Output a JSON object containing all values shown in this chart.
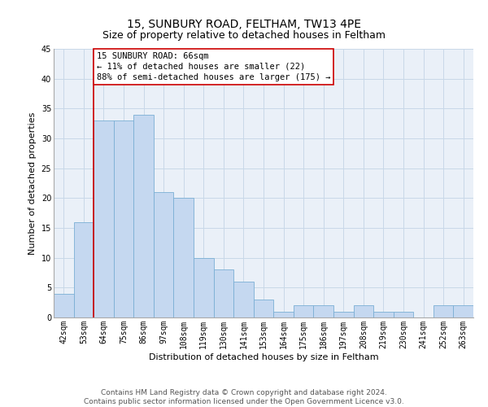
{
  "title": "15, SUNBURY ROAD, FELTHAM, TW13 4PE",
  "subtitle": "Size of property relative to detached houses in Feltham",
  "xlabel": "Distribution of detached houses by size in Feltham",
  "ylabel": "Number of detached properties",
  "categories": [
    "42sqm",
    "53sqm",
    "64sqm",
    "75sqm",
    "86sqm",
    "97sqm",
    "108sqm",
    "119sqm",
    "130sqm",
    "141sqm",
    "153sqm",
    "164sqm",
    "175sqm",
    "186sqm",
    "197sqm",
    "208sqm",
    "219sqm",
    "230sqm",
    "241sqm",
    "252sqm",
    "263sqm"
  ],
  "values": [
    4,
    16,
    33,
    33,
    34,
    21,
    20,
    10,
    8,
    6,
    3,
    1,
    2,
    2,
    1,
    2,
    1,
    1,
    0,
    2,
    2
  ],
  "bar_color": "#c5d8f0",
  "bar_edge_color": "#7aafd4",
  "property_line_color": "#cc0000",
  "annotation_line1": "15 SUNBURY ROAD: 66sqm",
  "annotation_line2": "← 11% of detached houses are smaller (22)",
  "annotation_line3": "88% of semi-detached houses are larger (175) →",
  "annotation_box_color": "#ffffff",
  "annotation_box_edge": "#cc0000",
  "ylim": [
    0,
    45
  ],
  "yticks": [
    0,
    5,
    10,
    15,
    20,
    25,
    30,
    35,
    40,
    45
  ],
  "grid_color": "#c8d8e8",
  "background_color": "#eaf0f8",
  "footer_line1": "Contains HM Land Registry data © Crown copyright and database right 2024.",
  "footer_line2": "Contains public sector information licensed under the Open Government Licence v3.0.",
  "title_fontsize": 10,
  "subtitle_fontsize": 9,
  "xlabel_fontsize": 8,
  "ylabel_fontsize": 8,
  "tick_fontsize": 7,
  "annotation_fontsize": 7.5,
  "footer_fontsize": 6.5
}
